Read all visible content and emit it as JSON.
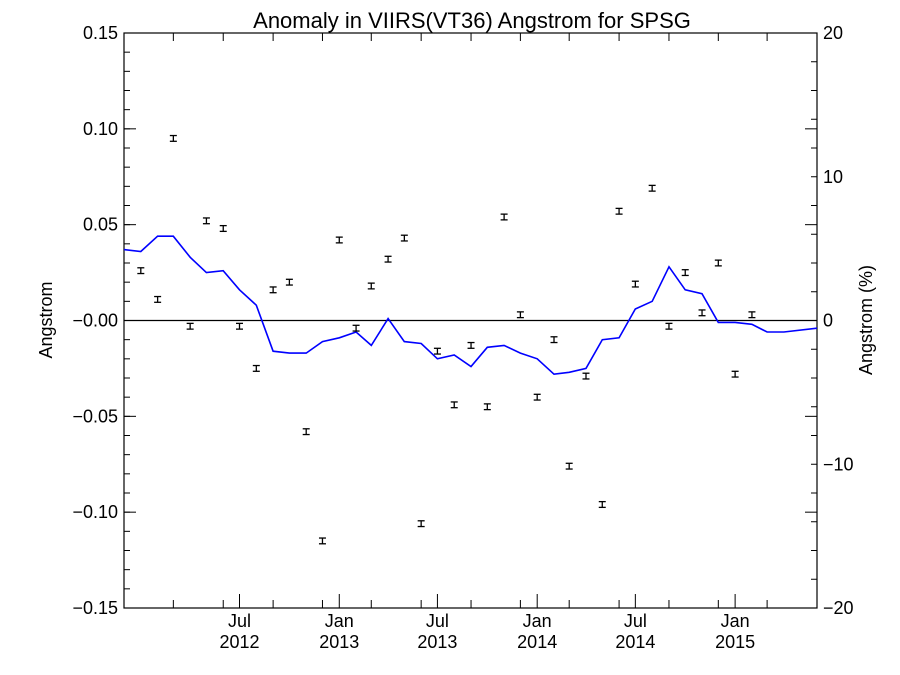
{
  "chart_data": {
    "type": "scatter",
    "title": "Anomaly in VIIRS(VT36) Angstrom for SPSG",
    "ylabel": "Angstrom",
    "y2label": "Angstrom (%)",
    "xlabel": "",
    "xlim": [
      "2011-12-01",
      "2015-06-01"
    ],
    "ylim": [
      -0.15,
      0.15
    ],
    "y2lim": [
      -20,
      20
    ],
    "x_ticks": [
      {
        "month": "Jul",
        "year": "2012",
        "date": "2012-07-01"
      },
      {
        "month": "Jan",
        "year": "2013",
        "date": "2013-01-01"
      },
      {
        "month": "Jul",
        "year": "2013",
        "date": "2013-07-01"
      },
      {
        "month": "Jan",
        "year": "2014",
        "date": "2014-01-01"
      },
      {
        "month": "Jul",
        "year": "2014",
        "date": "2014-07-01"
      },
      {
        "month": "Jan",
        "year": "2015",
        "date": "2015-01-01"
      }
    ],
    "y_ticks": [
      "0.15",
      "0.10",
      "0.05",
      "-0.00",
      "-0.05",
      "-0.10",
      "-0.15"
    ],
    "y2_ticks": [
      "20",
      "10",
      "0",
      "-10",
      "-20"
    ],
    "grid": false,
    "series": [
      {
        "kind": "points-with-error-bars",
        "color": "#000000",
        "x": [
          "2012-01-01",
          "2012-02-01",
          "2012-03-01",
          "2012-04-01",
          "2012-05-01",
          "2012-06-01",
          "2012-07-01",
          "2012-08-01",
          "2012-09-01",
          "2012-10-01",
          "2012-11-01",
          "2012-12-01",
          "2013-01-01",
          "2013-02-01",
          "2013-03-01",
          "2013-04-01",
          "2013-05-01",
          "2013-06-01",
          "2013-07-01",
          "2013-08-01",
          "2013-09-01",
          "2013-10-01",
          "2013-11-01",
          "2013-12-01",
          "2014-01-01",
          "2014-02-01",
          "2014-03-01",
          "2014-04-01",
          "2014-05-01",
          "2014-06-01",
          "2014-07-01",
          "2014-08-01",
          "2014-09-01",
          "2014-10-01",
          "2014-11-01",
          "2014-12-01",
          "2015-01-01",
          "2015-02-01",
          "2015-03-01"
        ],
        "y": [
          0.026,
          0.011,
          0.095,
          -0.003,
          0.052,
          0.048,
          -0.003,
          -0.025,
          0.016,
          0.02,
          -0.058,
          -0.115,
          0.042,
          -0.004,
          0.018,
          0.032,
          0.043,
          -0.106,
          -0.016,
          -0.044,
          -0.013,
          -0.045,
          0.054,
          0.003,
          -0.04,
          -0.01,
          -0.076,
          -0.029,
          -0.096,
          0.057,
          0.019,
          0.069,
          -0.003,
          0.025,
          0.004,
          0.03,
          -0.028,
          0.003,
          null
        ],
        "err": 0.0015
      },
      {
        "kind": "line",
        "color": "#0000ff",
        "x": [
          "2011-12-01",
          "2012-01-01",
          "2012-02-01",
          "2012-03-01",
          "2012-04-01",
          "2012-05-01",
          "2012-06-01",
          "2012-07-01",
          "2012-08-01",
          "2012-09-01",
          "2012-10-01",
          "2012-11-01",
          "2012-12-01",
          "2013-01-01",
          "2013-02-01",
          "2013-03-01",
          "2013-04-01",
          "2013-05-01",
          "2013-06-01",
          "2013-07-01",
          "2013-08-01",
          "2013-09-01",
          "2013-10-01",
          "2013-11-01",
          "2013-12-01",
          "2014-01-01",
          "2014-02-01",
          "2014-03-01",
          "2014-04-01",
          "2014-05-01",
          "2014-06-01",
          "2014-07-01",
          "2014-08-01",
          "2014-09-01",
          "2014-10-01",
          "2014-11-01",
          "2014-12-01",
          "2015-01-01",
          "2015-02-01",
          "2015-03-01",
          "2015-04-01",
          "2015-06-01"
        ],
        "y": [
          0.037,
          0.036,
          0.044,
          0.044,
          0.033,
          0.025,
          0.026,
          0.016,
          0.008,
          -0.016,
          -0.017,
          -0.017,
          -0.011,
          -0.009,
          -0.006,
          -0.013,
          0.001,
          -0.011,
          -0.012,
          -0.02,
          -0.018,
          -0.024,
          -0.014,
          -0.013,
          -0.017,
          -0.02,
          -0.028,
          -0.027,
          -0.025,
          -0.01,
          -0.009,
          0.006,
          0.01,
          0.028,
          0.016,
          0.014,
          -0.001,
          -0.001,
          -0.002,
          -0.006,
          -0.006,
          -0.004
        ]
      }
    ],
    "reference_line": {
      "y": 0.0,
      "color": "#000000"
    }
  }
}
